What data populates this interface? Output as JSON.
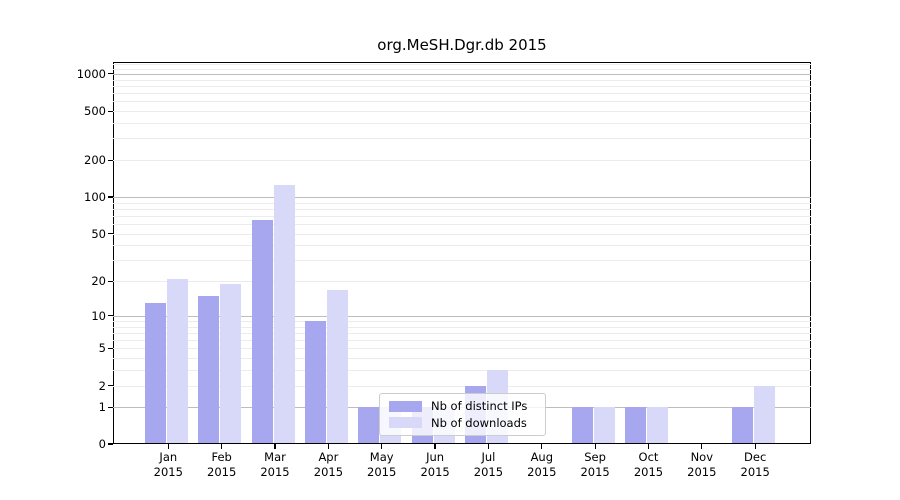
{
  "title": "org.MeSH.Dgr.db 2015",
  "colors": {
    "distinct_ips": "#a7a7f0",
    "downloads": "#d8d8f8",
    "axis": "#000000",
    "grid_major": "#bdbdbd",
    "grid_minor": "#ececec",
    "legend_border": "#cccccc"
  },
  "legend": {
    "items": [
      {
        "label": "Nb of distinct IPs",
        "series": "distinct_ips"
      },
      {
        "label": "Nb of downloads",
        "series": "downloads"
      }
    ]
  },
  "chart_data": {
    "type": "bar",
    "title": "org.MeSH.Dgr.db 2015",
    "xlabel": "",
    "ylabel": "",
    "year": "2015",
    "categories": [
      "Jan",
      "Feb",
      "Mar",
      "Apr",
      "May",
      "Jun",
      "Jul",
      "Aug",
      "Sep",
      "Oct",
      "Nov",
      "Dec"
    ],
    "series": [
      {
        "name": "Nb of distinct IPs",
        "color_key": "distinct_ips",
        "values": [
          13,
          15,
          65,
          9,
          1,
          1,
          2,
          0,
          1,
          1,
          0,
          1
        ]
      },
      {
        "name": "Nb of downloads",
        "color_key": "downloads",
        "values": [
          21,
          19,
          126,
          17,
          1,
          1,
          3,
          0,
          1,
          1,
          0,
          2
        ]
      }
    ],
    "yscale": "log1p",
    "yticks": [
      0,
      1,
      2,
      5,
      10,
      20,
      50,
      100,
      200,
      500,
      1000
    ],
    "ylim": [
      0,
      1250
    ],
    "grid": "on",
    "legend_position": "lower-center-inside"
  }
}
